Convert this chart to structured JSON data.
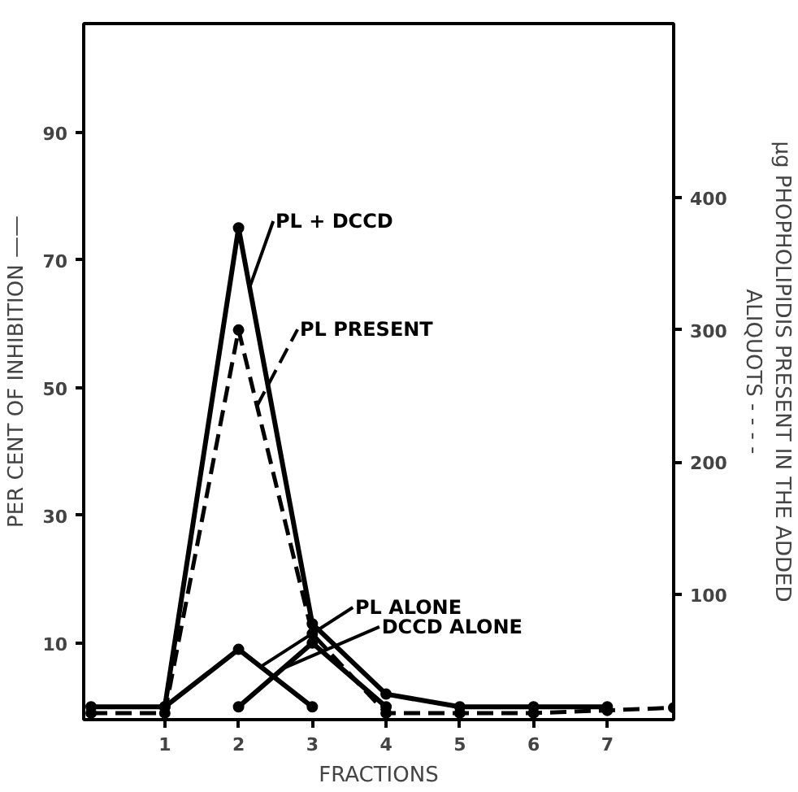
{
  "chart_data": {
    "type": "line",
    "xlabel": "FRACTIONS",
    "ylabel": "PER CENT OF INHIBITION ——",
    "y2label": "µg PHOPHOLIPIDIS PRESENT IN THE ADDED\nALIQUOTS - - - -",
    "xlim": [
      -0.1,
      7.9
    ],
    "xticks": [
      1,
      2,
      3,
      4,
      5,
      6,
      7
    ],
    "ylim": [
      -2,
      107
    ],
    "yticks": [
      10,
      30,
      50,
      70,
      90
    ],
    "y2lim": [
      5,
      532
    ],
    "y2ticks": [
      100,
      200,
      300,
      400
    ],
    "grid": false,
    "legend": false,
    "marker": "circle",
    "series": [
      {
        "name": "PL + DCCD",
        "color": "#000000",
        "x": [
          0,
          1,
          2,
          3,
          4,
          5,
          6,
          7
        ],
        "values": [
          0,
          0,
          75,
          13,
          2,
          0,
          0,
          0
        ],
        "line_style": "solid"
      },
      {
        "name": "PL  PRESENT",
        "color": "#000000",
        "x": [
          0,
          1,
          2,
          3,
          4,
          5,
          6,
          7,
          7.9
        ],
        "values": [
          10,
          10,
          300,
          70,
          10,
          10,
          10,
          12,
          14
        ],
        "axis": "y2",
        "line_style": "dashed"
      },
      {
        "name": "PL  ALONE",
        "color": "#000000",
        "x": [
          1,
          2,
          3
        ],
        "values": [
          0,
          9,
          0
        ],
        "line_style": "solid"
      },
      {
        "name": "DCCD  ALONE",
        "color": "#000000",
        "x": [
          2,
          3,
          4
        ],
        "values": [
          0,
          10,
          0
        ],
        "line_style": "solid"
      }
    ]
  }
}
